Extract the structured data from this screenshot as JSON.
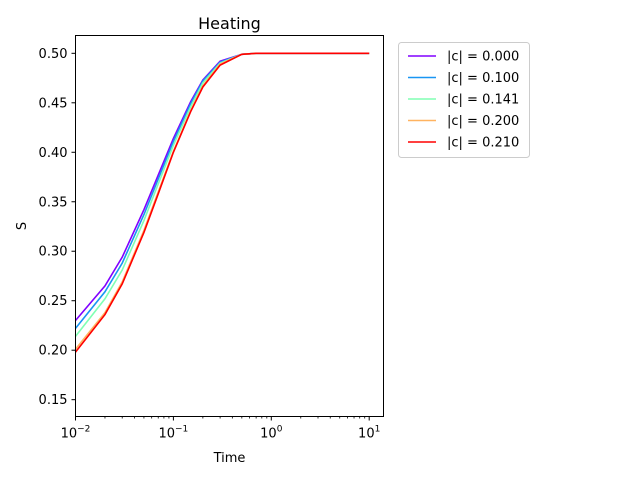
{
  "chart_data": {
    "type": "line",
    "title": "Heating",
    "xlabel": "Time",
    "ylabel": "S",
    "xscale": "log",
    "xlim": [
      0.01,
      14
    ],
    "ylim": [
      0.133,
      0.518
    ],
    "grid": false,
    "legend_position": "outside-top-right",
    "x_ticks": [
      {
        "value": 0.01,
        "base": "10",
        "exp": "−2"
      },
      {
        "value": 0.1,
        "base": "10",
        "exp": "−1"
      },
      {
        "value": 1,
        "base": "10",
        "exp": "0"
      },
      {
        "value": 10,
        "base": "10",
        "exp": "1"
      }
    ],
    "y_ticks": [
      "0.15",
      "0.20",
      "0.25",
      "0.30",
      "0.35",
      "0.40",
      "0.45",
      "0.50"
    ],
    "x": [
      0.01,
      0.02,
      0.03,
      0.05,
      0.07,
      0.1,
      0.15,
      0.2,
      0.3,
      0.5,
      0.7,
      1,
      2,
      5,
      10
    ],
    "series": [
      {
        "name": "|c| = 0.000",
        "color": "#8000ff",
        "values": [
          0.23,
          0.265,
          0.294,
          0.342,
          0.377,
          0.414,
          0.451,
          0.473,
          0.492,
          0.499,
          0.5,
          0.5,
          0.5,
          0.5,
          0.5
        ]
      },
      {
        "name": "|c| = 0.100",
        "color": "#1996f3",
        "values": [
          0.222,
          0.259,
          0.288,
          0.337,
          0.373,
          0.411,
          0.449,
          0.472,
          0.491,
          0.499,
          0.5,
          0.5,
          0.5,
          0.5,
          0.5
        ]
      },
      {
        "name": "|c| = 0.141",
        "color": "#80ffb4",
        "values": [
          0.214,
          0.252,
          0.281,
          0.331,
          0.368,
          0.407,
          0.446,
          0.47,
          0.49,
          0.499,
          0.5,
          0.5,
          0.5,
          0.5,
          0.5
        ]
      },
      {
        "name": "|c| = 0.200",
        "color": "#ffb360",
        "values": [
          0.201,
          0.238,
          0.269,
          0.321,
          0.36,
          0.401,
          0.442,
          0.467,
          0.489,
          0.499,
          0.5,
          0.5,
          0.5,
          0.5,
          0.5
        ]
      },
      {
        "name": "|c| = 0.210",
        "color": "#ff0000",
        "values": [
          0.198,
          0.236,
          0.267,
          0.319,
          0.358,
          0.4,
          0.441,
          0.466,
          0.488,
          0.499,
          0.5,
          0.5,
          0.5,
          0.5,
          0.5
        ]
      }
    ]
  }
}
